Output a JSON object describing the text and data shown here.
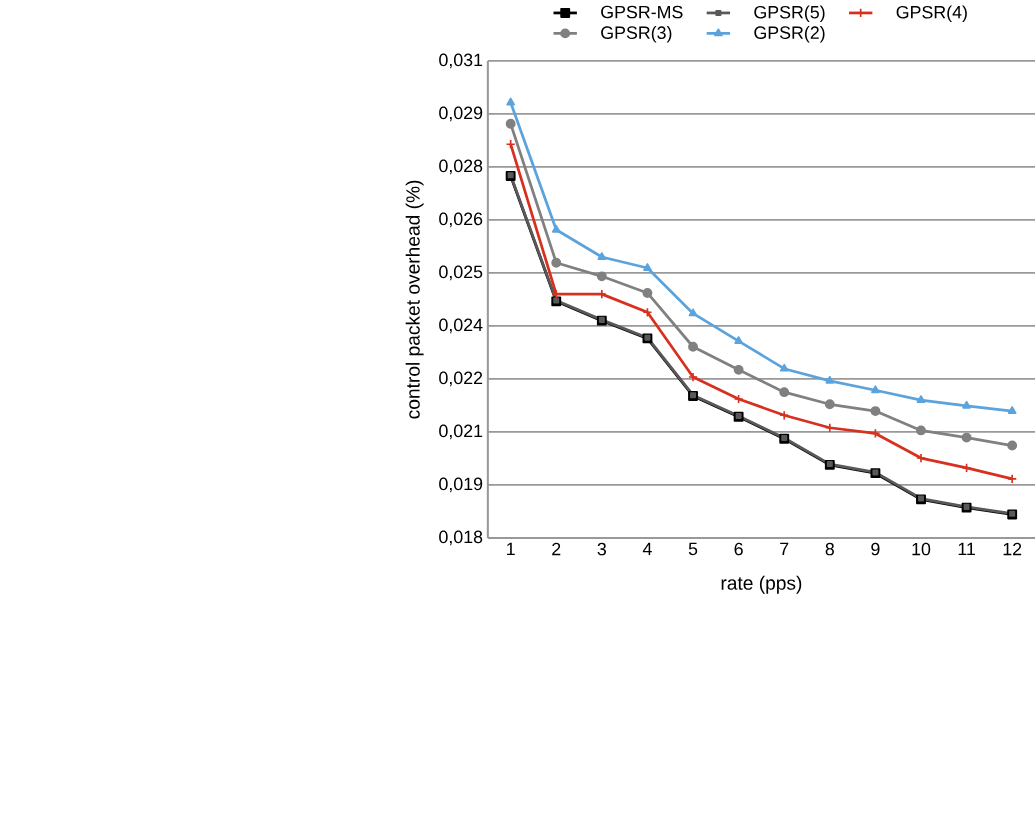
{
  "chart_data": {
    "type": "line",
    "xlabel": "rate (pps)",
    "ylabel": "control packet overhead  (%)",
    "categories": [
      "1",
      "2",
      "3",
      "4",
      "5",
      "6",
      "7",
      "8",
      "9",
      "10",
      "11",
      "12"
    ],
    "ylim": [
      0.018,
      0.0306
    ],
    "yticks": [
      {
        "value": 0.018,
        "label": "0,018"
      },
      {
        "value": 0.0194,
        "label": "0,019"
      },
      {
        "value": 0.0208,
        "label": "0,021"
      },
      {
        "value": 0.0222,
        "label": "0,022"
      },
      {
        "value": 0.0236,
        "label": "0,024"
      },
      {
        "value": 0.025,
        "label": "0,025"
      },
      {
        "value": 0.0264,
        "label": "0,026"
      },
      {
        "value": 0.0278,
        "label": "0,028"
      },
      {
        "value": 0.0292,
        "label": "0,029"
      },
      {
        "value": 0.0306,
        "label": "0,031"
      }
    ],
    "grid": "y",
    "legend": "top",
    "line_style": "solid",
    "series": [
      {
        "name": "GPSR-MS",
        "color": "#000000",
        "marker": "square",
        "values": [
          0.02756,
          0.02425,
          0.02374,
          0.02327,
          0.02175,
          0.0212,
          0.02062,
          0.01993,
          0.01971,
          0.01902,
          0.0188,
          0.01862
        ]
      },
      {
        "name": "GPSR(5)",
        "color": "#595959",
        "marker": "square",
        "values": [
          0.02758,
          0.02427,
          0.02376,
          0.02329,
          0.02177,
          0.02122,
          0.02064,
          0.01995,
          0.01973,
          0.01904,
          0.01882,
          0.01864
        ]
      },
      {
        "name": "GPSR(4)",
        "color": "#d7301f",
        "marker": "cross",
        "values": [
          0.0284,
          0.02444,
          0.02444,
          0.02396,
          0.02225,
          0.02167,
          0.02124,
          0.02091,
          0.02076,
          0.02011,
          0.01985,
          0.01956
        ]
      },
      {
        "name": "GPSR(3)",
        "color": "#808080",
        "marker": "circle",
        "values": [
          0.02894,
          0.02527,
          0.02491,
          0.02447,
          0.02305,
          0.02244,
          0.02185,
          0.02153,
          0.02135,
          0.02084,
          0.02065,
          0.02044
        ]
      },
      {
        "name": "GPSR(2)",
        "color": "#5ba3dc",
        "marker": "triangle",
        "values": [
          0.0295,
          0.02614,
          0.02542,
          0.02513,
          0.02393,
          0.0232,
          0.02247,
          0.02215,
          0.0219,
          0.02164,
          0.02149,
          0.02135
        ]
      }
    ]
  }
}
